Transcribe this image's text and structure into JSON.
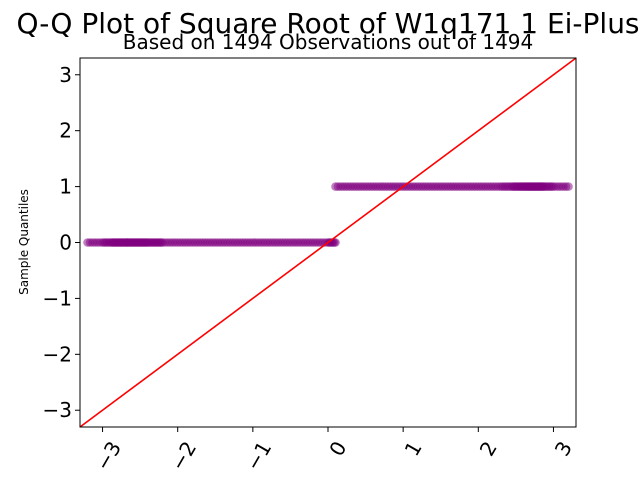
{
  "chart_data": {
    "type": "scatter",
    "title": "Q-Q Plot of Square Root of W1q171 1 Ei-Plus",
    "subtitle": "Based on 1494 Observations out of 1494",
    "xlabel": "",
    "ylabel": "Sample Quantiles",
    "xlim": [
      -3.3,
      3.3
    ],
    "ylim": [
      -3.3,
      3.3
    ],
    "x_ticks": [
      -3,
      -2,
      -1,
      0,
      1,
      2,
      3
    ],
    "y_ticks": [
      -3,
      -2,
      -1,
      0,
      1,
      2,
      3
    ],
    "x_tick_labels": [
      "−3",
      "−2",
      "−1",
      "0",
      "1",
      "2",
      "3"
    ],
    "y_tick_labels": [
      "−3",
      "−2",
      "−1",
      "0",
      "1",
      "2",
      "3"
    ],
    "grid": false,
    "series": [
      {
        "marker_color": "#800080",
        "points": [
          {
            "x": -3.2,
            "y": 0
          },
          {
            "x": -3.0,
            "y": 0
          },
          {
            "x": -2.88,
            "y": 0
          },
          {
            "x": -2.8,
            "y": 0
          },
          {
            "x": -2.72,
            "y": 0
          },
          {
            "x": -2.64,
            "y": 0
          },
          {
            "x": -2.56,
            "y": 0
          },
          {
            "x": -2.48,
            "y": 0
          },
          {
            "x": -2.4,
            "y": 0
          },
          {
            "x": -2.3,
            "y": 0
          },
          {
            "x": -2.2,
            "y": 0
          },
          {
            "x": -2.0,
            "y": 0
          },
          {
            "x": -1.8,
            "y": 0
          },
          {
            "x": -1.6,
            "y": 0
          },
          {
            "x": -1.4,
            "y": 0
          },
          {
            "x": -1.2,
            "y": 0
          },
          {
            "x": -1.0,
            "y": 0
          },
          {
            "x": -0.8,
            "y": 0
          },
          {
            "x": -0.6,
            "y": 0
          },
          {
            "x": -0.4,
            "y": 0
          },
          {
            "x": -0.2,
            "y": 0
          },
          {
            "x": 0.0,
            "y": 0
          },
          {
            "x": 0.1,
            "y": 0
          },
          {
            "x": 0.1,
            "y": 1
          },
          {
            "x": 0.3,
            "y": 1
          },
          {
            "x": 0.5,
            "y": 1
          },
          {
            "x": 0.7,
            "y": 1
          },
          {
            "x": 0.9,
            "y": 1
          },
          {
            "x": 1.1,
            "y": 1
          },
          {
            "x": 1.3,
            "y": 1
          },
          {
            "x": 1.5,
            "y": 1
          },
          {
            "x": 1.7,
            "y": 1
          },
          {
            "x": 1.9,
            "y": 1
          },
          {
            "x": 2.1,
            "y": 1
          },
          {
            "x": 2.3,
            "y": 1
          },
          {
            "x": 2.45,
            "y": 1
          },
          {
            "x": 2.55,
            "y": 1
          },
          {
            "x": 2.64,
            "y": 1
          },
          {
            "x": 2.72,
            "y": 1
          },
          {
            "x": 2.8,
            "y": 1
          },
          {
            "x": 2.88,
            "y": 1
          },
          {
            "x": 3.0,
            "y": 1
          },
          {
            "x": 3.2,
            "y": 1
          }
        ]
      }
    ],
    "reference_line": {
      "slope": 1,
      "intercept": 0,
      "color": "#ff0000"
    }
  }
}
